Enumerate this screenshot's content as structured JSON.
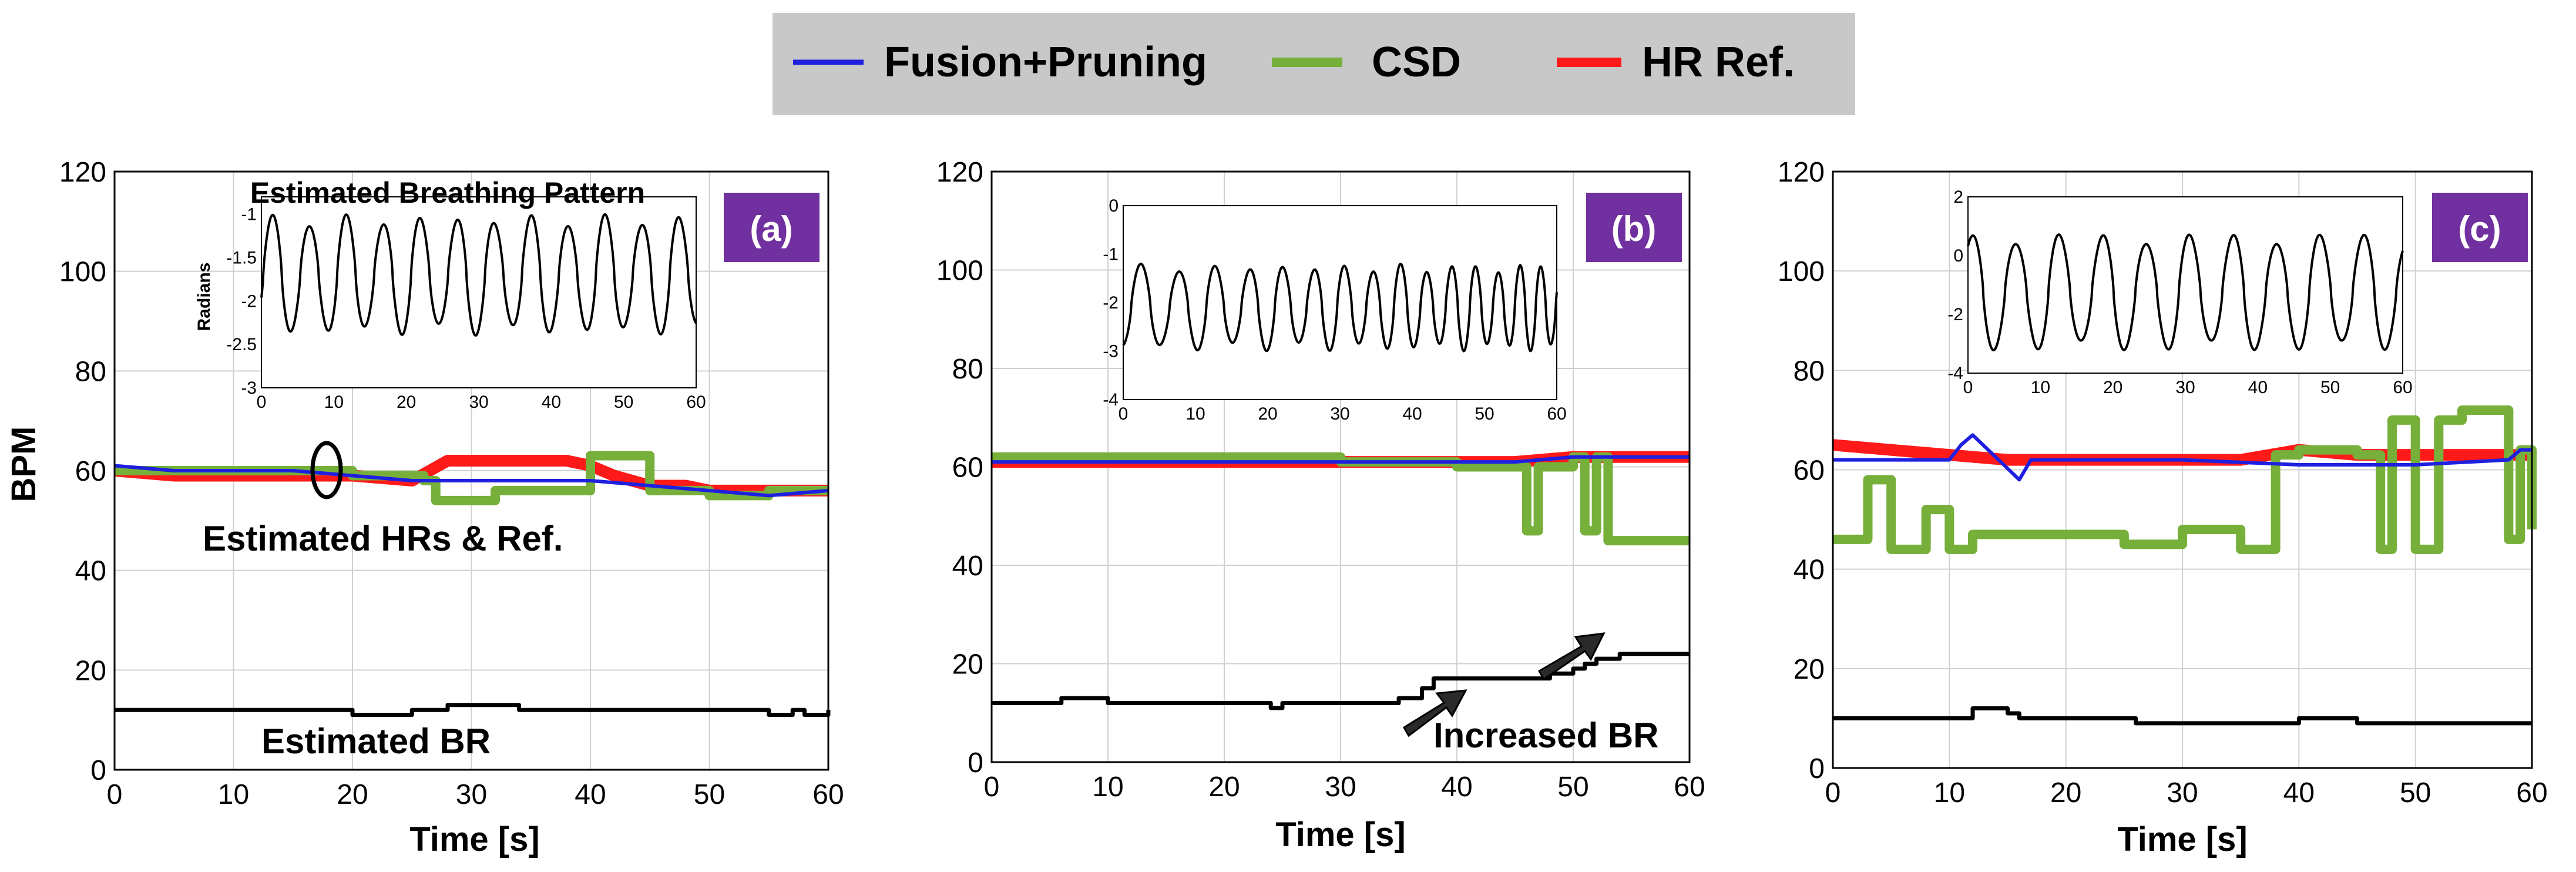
{
  "colors": {
    "fusion": "#1f1fe0",
    "csd": "#76b03a",
    "ref": "#ff1a1a",
    "br": "#000000",
    "tag_bg": "#7030a0",
    "legend_bg": "#c8c8c8"
  },
  "legend": {
    "items": [
      {
        "label": "Fusion+Pruning",
        "color": "#1f1fe0"
      },
      {
        "label": "CSD",
        "color": "#76b03a"
      },
      {
        "label": "HR Ref.",
        "color": "#ff1a1a"
      }
    ]
  },
  "chart_data": [
    {
      "type": "line",
      "panel": "(a)",
      "xlabel": "Time [s]",
      "ylabel": "BPM",
      "xlim": [
        0,
        60
      ],
      "ylim": [
        0,
        120
      ],
      "xticks": [
        0,
        10,
        20,
        30,
        40,
        50,
        60
      ],
      "yticks": [
        0,
        20,
        40,
        60,
        80,
        100,
        120
      ],
      "grid": true,
      "annotations": [
        "Estimated HRs & Ref.",
        "Estimated BR"
      ],
      "series": [
        {
          "name": "HR Ref.",
          "x": [
            0,
            5,
            10,
            15,
            18,
            20,
            25,
            28,
            30,
            33,
            35,
            38,
            40,
            42,
            45,
            48,
            50,
            55,
            60
          ],
          "values": [
            60,
            59,
            59,
            59,
            59,
            59,
            58,
            62,
            62,
            62,
            62,
            62,
            61,
            59,
            57,
            57,
            56,
            56,
            56
          ]
        },
        {
          "name": "Fusion+Pruning",
          "x": [
            0,
            5,
            10,
            15,
            20,
            25,
            30,
            35,
            40,
            45,
            50,
            55,
            60
          ],
          "values": [
            61,
            60,
            60,
            60,
            59,
            58,
            58,
            58,
            58,
            57,
            56,
            55,
            56
          ]
        },
        {
          "name": "CSD",
          "x": [
            0,
            5,
            10,
            15,
            20,
            26,
            27,
            30,
            32,
            38,
            40,
            43,
            45,
            50,
            55,
            60
          ],
          "values": [
            60,
            60,
            60,
            60,
            59,
            58,
            54,
            54,
            56,
            56,
            63,
            63,
            56,
            55,
            56,
            56
          ]
        },
        {
          "name": "Estimated BR",
          "x": [
            0,
            5,
            10,
            15,
            20,
            23,
            25,
            28,
            30,
            34,
            38,
            44,
            50,
            55,
            57,
            58,
            60
          ],
          "values": [
            12,
            12,
            12,
            12,
            11,
            11,
            12,
            13,
            13,
            12,
            12,
            12,
            12,
            11,
            12,
            11,
            12
          ]
        }
      ],
      "inset": {
        "title": "Estimated Breathing Pattern",
        "ylabel": "Radians",
        "xlim": [
          0,
          60
        ],
        "ylim": [
          -3,
          -0.8
        ],
        "xticks": [
          0,
          10,
          20,
          30,
          40,
          50,
          60
        ],
        "yticks": [
          -1,
          -1.5,
          -2,
          -2.5,
          -3
        ],
        "ytick_labels": [
          "-1",
          "-1.5",
          "-2",
          "-2.5",
          "-3"
        ],
        "signal": {
          "period": 5.1,
          "low": -2.4,
          "high": -1.0,
          "phase": 0.7
        }
      }
    },
    {
      "type": "line",
      "panel": "(b)",
      "xlabel": "Time [s]",
      "ylabel": "",
      "xlim": [
        0,
        60
      ],
      "ylim": [
        0,
        120
      ],
      "xticks": [
        0,
        10,
        20,
        30,
        40,
        50,
        60
      ],
      "yticks": [
        0,
        20,
        40,
        60,
        80,
        100,
        120
      ],
      "grid": true,
      "annotations": [
        "Increased BR"
      ],
      "series": [
        {
          "name": "HR Ref.",
          "x": [
            0,
            10,
            20,
            30,
            40,
            45,
            50,
            55,
            60
          ],
          "values": [
            61,
            61,
            61,
            61,
            61,
            61,
            62,
            62,
            62
          ]
        },
        {
          "name": "Fusion+Pruning",
          "x": [
            0,
            10,
            20,
            30,
            40,
            45,
            50,
            55,
            60
          ],
          "values": [
            61,
            61,
            61,
            61,
            61,
            61,
            62,
            62,
            62
          ]
        },
        {
          "name": "CSD",
          "x": [
            0,
            10,
            20,
            30,
            40,
            45,
            46,
            47,
            50,
            51,
            52,
            53,
            60
          ],
          "values": [
            62,
            62,
            62,
            61,
            60,
            60,
            47,
            60,
            62,
            47,
            62,
            45,
            45
          ]
        },
        {
          "name": "Estimated BR",
          "x": [
            0,
            5,
            6,
            10,
            20,
            24,
            25,
            30,
            33,
            35,
            37,
            38,
            45,
            48,
            49,
            50,
            51,
            52,
            53,
            54,
            60
          ],
          "values": [
            12,
            12,
            13,
            12,
            12,
            11,
            12,
            12,
            12,
            13,
            15,
            17,
            17,
            18,
            18,
            19,
            20,
            21,
            21,
            22,
            22
          ]
        }
      ],
      "inset": {
        "title": "",
        "ylabel": "",
        "xlim": [
          0,
          60
        ],
        "ylim": [
          -4,
          0
        ],
        "xticks": [
          0,
          10,
          20,
          30,
          40,
          50,
          60
        ],
        "yticks": [
          0,
          -1,
          -2,
          -3,
          -4
        ],
        "ytick_labels": [
          "0",
          "-1",
          "-2",
          "-3",
          "-4"
        ],
        "signal": {
          "period_start": 5.5,
          "period_end": 2.7,
          "low": -3.0,
          "high": -1.2,
          "phase": 0.55
        }
      }
    },
    {
      "type": "line",
      "panel": "(c)",
      "xlabel": "Time [s]",
      "ylabel": "",
      "xlim": [
        0,
        60
      ],
      "ylim": [
        0,
        120
      ],
      "xticks": [
        0,
        10,
        20,
        30,
        40,
        50,
        60
      ],
      "yticks": [
        0,
        20,
        40,
        60,
        80,
        100,
        120
      ],
      "grid": true,
      "annotations": [],
      "series": [
        {
          "name": "HR Ref.",
          "x": [
            0,
            5,
            10,
            15,
            20,
            25,
            30,
            35,
            40,
            45,
            50,
            55,
            60
          ],
          "values": [
            65,
            64,
            63,
            62,
            62,
            62,
            62,
            62,
            64,
            63,
            63,
            63,
            63
          ]
        },
        {
          "name": "Fusion+Pruning",
          "x": [
            0,
            10,
            11,
            12,
            16,
            17,
            20,
            30,
            40,
            50,
            58,
            59,
            60
          ],
          "values": [
            62,
            62,
            65,
            67,
            58,
            62,
            62,
            62,
            61,
            61,
            62,
            64,
            64
          ]
        },
        {
          "name": "CSD",
          "x": [
            0,
            3,
            5,
            8,
            10,
            12,
            20,
            25,
            30,
            35,
            37,
            38,
            40,
            45,
            47,
            48,
            50,
            52,
            54,
            56,
            58,
            59,
            60
          ],
          "values": [
            46,
            58,
            44,
            52,
            44,
            47,
            47,
            45,
            48,
            44,
            44,
            63,
            64,
            63,
            44,
            70,
            44,
            70,
            72,
            72,
            46,
            64,
            48
          ]
        },
        {
          "name": "Estimated BR",
          "x": [
            0,
            10,
            12,
            15,
            16,
            20,
            25,
            26,
            30,
            35,
            40,
            42,
            45,
            50,
            55,
            60
          ],
          "values": [
            10,
            10,
            12,
            11,
            10,
            10,
            10,
            9,
            9,
            9,
            10,
            10,
            9,
            9,
            9,
            9
          ]
        }
      ],
      "inset": {
        "title": "",
        "ylabel": "",
        "xlim": [
          0,
          60
        ],
        "ylim": [
          -4,
          2
        ],
        "xticks": [
          0,
          10,
          20,
          30,
          40,
          50,
          60
        ],
        "yticks": [
          2,
          0,
          -2,
          -4
        ],
        "ytick_labels": [
          "2",
          "0",
          "-2",
          "-4"
        ],
        "signal": {
          "period": 6.0,
          "low": -3.3,
          "high": 0.8,
          "phase": 0.9
        }
      }
    }
  ]
}
